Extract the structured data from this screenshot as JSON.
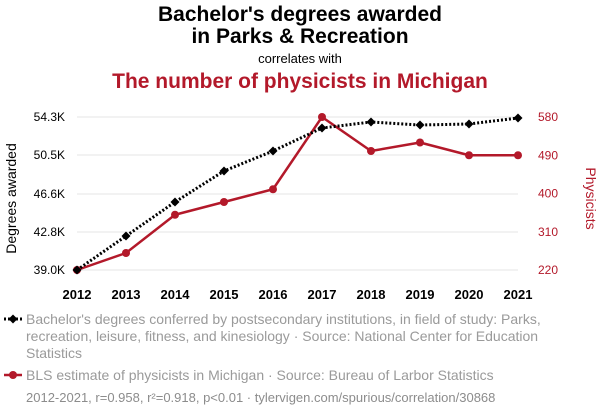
{
  "header": {
    "title_line1": "Bachelor's degrees awarded",
    "title_line2": "in Parks & Recreation",
    "connector": "correlates with",
    "title2": "The number of physicists in Michigan"
  },
  "chart_data": {
    "type": "line",
    "x": [
      "2012",
      "2013",
      "2014",
      "2015",
      "2016",
      "2017",
      "2018",
      "2019",
      "2020",
      "2021"
    ],
    "series": [
      {
        "name": "Bachelor's degrees conferred by postsecondary institutions, in field of study: Parks, recreation, leisure, fitness, and kinesiology · Source: National Center for Education Statistics",
        "axis": "left",
        "color": "#000000",
        "style": "dotted",
        "marker": "diamond",
        "values": [
          39000,
          42400,
          45800,
          48900,
          50900,
          53200,
          53800,
          53500,
          53600,
          54200
        ]
      },
      {
        "name": "BLS estimate of physicists in Michigan · Source: Bureau of Larbor Statistics",
        "axis": "right",
        "color": "#b3192a",
        "style": "solid",
        "marker": "circle",
        "values": [
          220,
          260,
          350,
          380,
          410,
          580,
          500,
          520,
          490,
          490
        ]
      }
    ],
    "y_left": {
      "label": "Degrees awarded",
      "ticks": [
        39000,
        42800,
        46600,
        50500,
        54300
      ],
      "tick_labels": [
        "39.0K",
        "42.8K",
        "46.6K",
        "50.5K",
        "54.3K"
      ],
      "range": [
        39000,
        54300
      ]
    },
    "y_right": {
      "label": "Physicists",
      "ticks": [
        220,
        310,
        400,
        490,
        580
      ],
      "tick_labels": [
        "220",
        "310",
        "400",
        "490",
        "580"
      ],
      "range": [
        220,
        580
      ]
    },
    "grid": "horizontal"
  },
  "legend": {
    "series1": "Bachelor's degrees conferred by postsecondary institutions, in field of study: Parks, recreation, leisure, fitness, and kinesiology · Source: National Center for Education Statistics",
    "series2": "BLS estimate of physicists in Michigan · Source: Bureau of Larbor Statistics"
  },
  "footer": "2012-2021, r=0.958, r²=0.918, p<0.01 · tylervigen.com/spurious/correlation/30868",
  "colors": {
    "series1": "#000000",
    "series2": "#b3192a",
    "grid": "#e6e6e6",
    "legend_text": "#9a9a9a"
  }
}
